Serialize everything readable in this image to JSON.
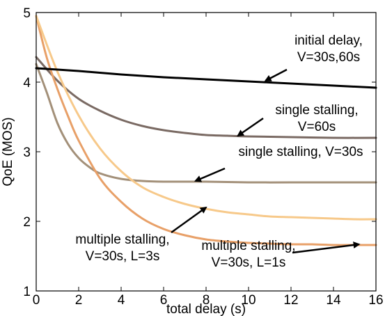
{
  "chart_data": {
    "type": "line",
    "xlabel": "total delay (s)",
    "ylabel": "QoE (MOS)",
    "xlim": [
      0,
      16
    ],
    "ylim": [
      1,
      5
    ],
    "x_ticks": [
      0,
      2,
      4,
      6,
      8,
      10,
      12,
      14,
      16
    ],
    "y_ticks": [
      1,
      2,
      3,
      4,
      5
    ],
    "grid": false,
    "series": [
      {
        "color": "#000000",
        "x": [
          0,
          2,
          4,
          6,
          8,
          10,
          12,
          14,
          16
        ],
        "y": [
          4.2,
          4.16,
          4.11,
          4.07,
          4.04,
          4.01,
          3.98,
          3.95,
          3.92
        ]
      },
      {
        "color": "#7a6a63",
        "x": [
          0,
          1,
          2,
          3,
          4,
          5,
          6,
          7,
          8,
          9,
          10,
          12,
          14,
          16
        ],
        "y": [
          4.36,
          4.02,
          3.76,
          3.59,
          3.46,
          3.37,
          3.31,
          3.27,
          3.24,
          3.23,
          3.22,
          3.21,
          3.2,
          3.2
        ]
      },
      {
        "color": "#a39079",
        "x": [
          0,
          0.5,
          1,
          1.5,
          2,
          2.5,
          3,
          4,
          5,
          6,
          8,
          10,
          12,
          14,
          16
        ],
        "y": [
          4.26,
          3.85,
          3.41,
          3.11,
          2.91,
          2.78,
          2.69,
          2.61,
          2.58,
          2.57,
          2.57,
          2.56,
          2.56,
          2.56,
          2.56
        ]
      },
      {
        "color": "#f7c98a",
        "x": [
          0,
          1,
          2,
          3,
          4,
          5,
          6,
          7,
          8,
          9,
          10,
          11,
          12,
          13,
          14,
          15,
          16
        ],
        "y": [
          4.95,
          4.15,
          3.52,
          3.05,
          2.72,
          2.49,
          2.35,
          2.25,
          2.18,
          2.13,
          2.1,
          2.07,
          2.06,
          2.05,
          2.04,
          2.03,
          2.03
        ]
      },
      {
        "color": "#e8a068",
        "x": [
          0,
          0.5,
          1,
          1.5,
          2,
          3,
          4,
          5,
          6,
          7,
          8,
          9,
          10,
          11,
          12,
          13,
          14,
          15,
          16
        ],
        "y": [
          4.95,
          4.35,
          3.9,
          3.51,
          3.16,
          2.62,
          2.28,
          2.04,
          1.89,
          1.8,
          1.74,
          1.71,
          1.69,
          1.68,
          1.67,
          1.67,
          1.66,
          1.66,
          1.66
        ]
      }
    ],
    "annotations": [
      {
        "lines": [
          "initial delay,",
          "V=30s,60s"
        ],
        "arrow_to": [
          10.8,
          4.02
        ]
      },
      {
        "lines": [
          "single stalling,",
          "V=60s"
        ],
        "arrow_to": [
          9.5,
          3.23
        ]
      },
      {
        "lines": [
          "single stalling, V=30s"
        ],
        "arrow_to": [
          7.5,
          2.58
        ]
      },
      {
        "lines": [
          "multiple stalling,",
          "V=30s, L=3s"
        ],
        "arrow_to": [
          8.0,
          2.2
        ]
      },
      {
        "lines": [
          "multiple stalling,",
          "V=30s, L=1s"
        ],
        "arrow_to": [
          15.2,
          1.67
        ]
      }
    ]
  }
}
